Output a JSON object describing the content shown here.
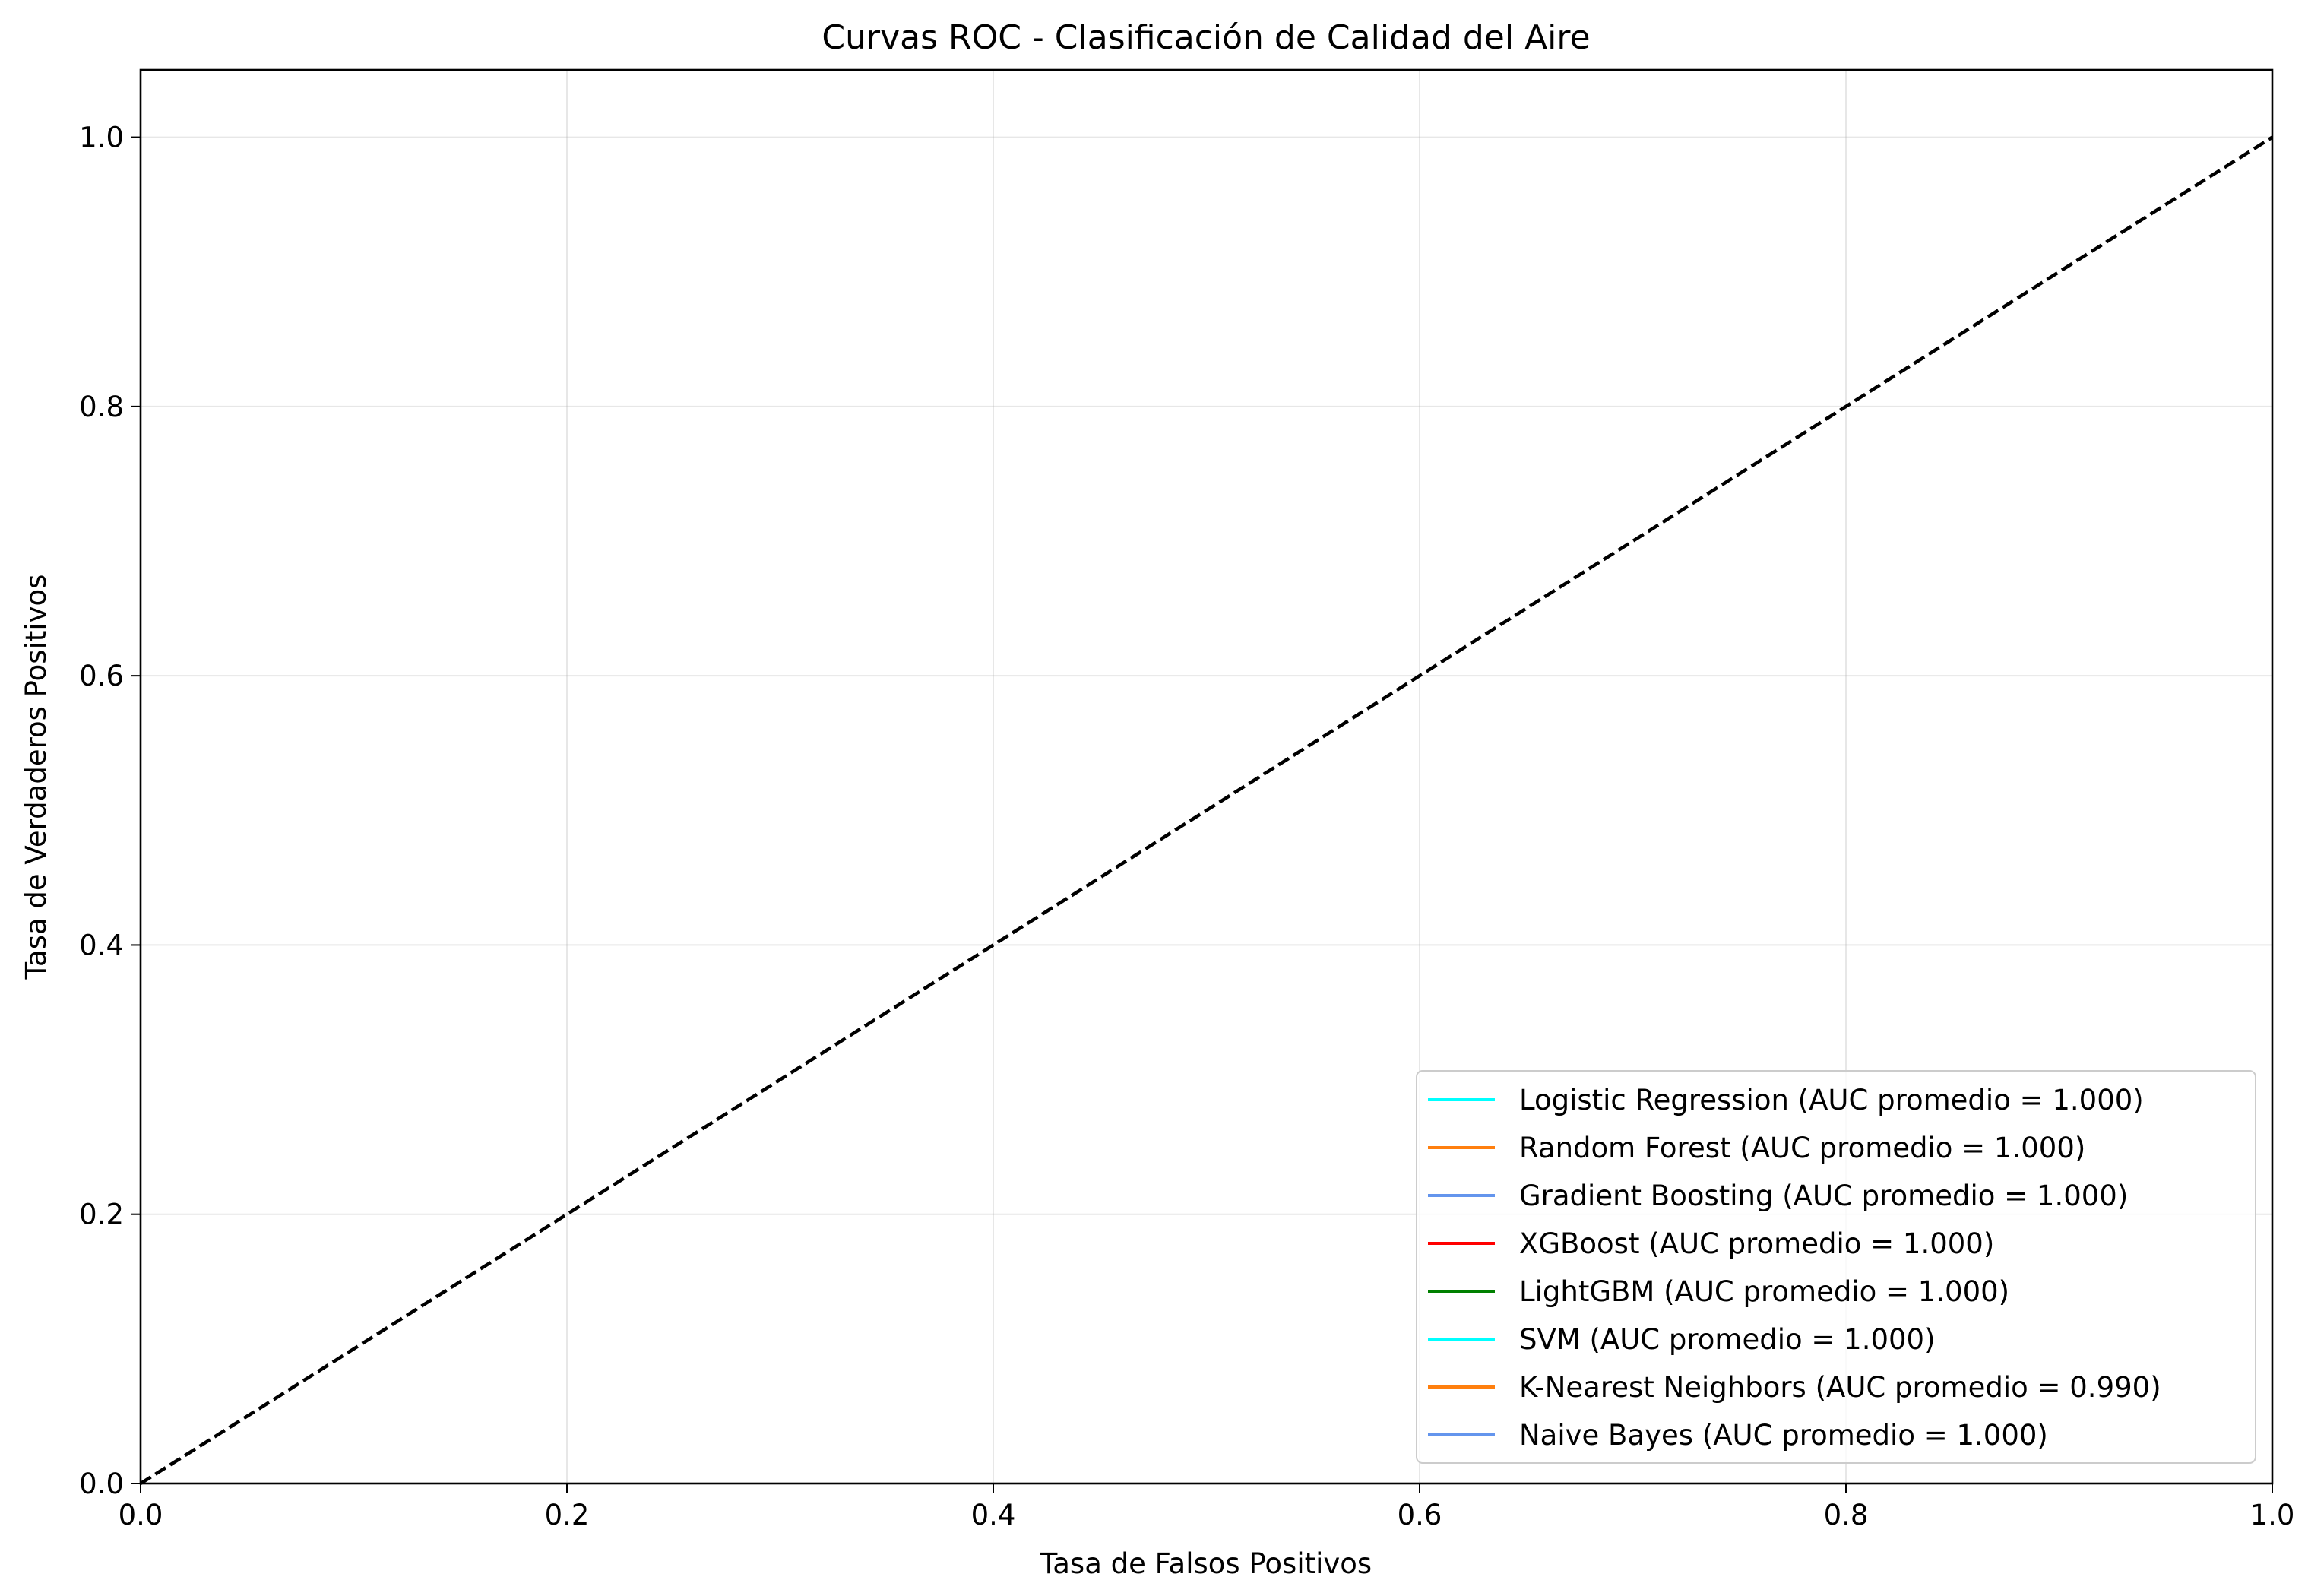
{
  "chart_data": {
    "type": "line",
    "title": "Curvas ROC - Clasificación de Calidad del Aire",
    "xlabel": "Tasa de Falsos Positivos",
    "ylabel": "Tasa de Verdaderos Positivos",
    "xlim": [
      0.0,
      1.0
    ],
    "ylim": [
      0.0,
      1.05
    ],
    "xticks": [
      0.0,
      0.2,
      0.4,
      0.6,
      0.8,
      1.0
    ],
    "xtick_labels": [
      "0.0",
      "0.2",
      "0.4",
      "0.6",
      "0.8",
      "1.0"
    ],
    "yticks": [
      0.0,
      0.2,
      0.4,
      0.6,
      0.8,
      1.0
    ],
    "ytick_labels": [
      "0.0",
      "0.2",
      "0.4",
      "0.6",
      "0.8",
      "1.0"
    ],
    "grid": true,
    "legend_position": "lower-right",
    "series": [
      {
        "name": "Logistic Regression (AUC promedio = 1.000)",
        "color": "#00ffff",
        "x": [],
        "y": []
      },
      {
        "name": "Random Forest (AUC promedio = 1.000)",
        "color": "#ff7f0e",
        "x": [],
        "y": []
      },
      {
        "name": "Gradient Boosting (AUC promedio = 1.000)",
        "color": "#6495ed",
        "x": [],
        "y": []
      },
      {
        "name": "XGBoost (AUC promedio = 1.000)",
        "color": "#ff0000",
        "x": [],
        "y": []
      },
      {
        "name": "LightGBM (AUC promedio = 1.000)",
        "color": "#008000",
        "x": [],
        "y": []
      },
      {
        "name": "SVM (AUC promedio = 1.000)",
        "color": "#00ffff",
        "x": [],
        "y": []
      },
      {
        "name": "K-Nearest Neighbors (AUC promedio = 0.990)",
        "color": "#ff7f0e",
        "x": [],
        "y": []
      },
      {
        "name": "Naive Bayes (AUC promedio = 1.000)",
        "color": "#6495ed",
        "x": [],
        "y": []
      }
    ],
    "reference_line": {
      "x": [
        0.0,
        1.0
      ],
      "y": [
        0.0,
        1.0
      ],
      "color": "#000000",
      "style": "dashed"
    }
  }
}
